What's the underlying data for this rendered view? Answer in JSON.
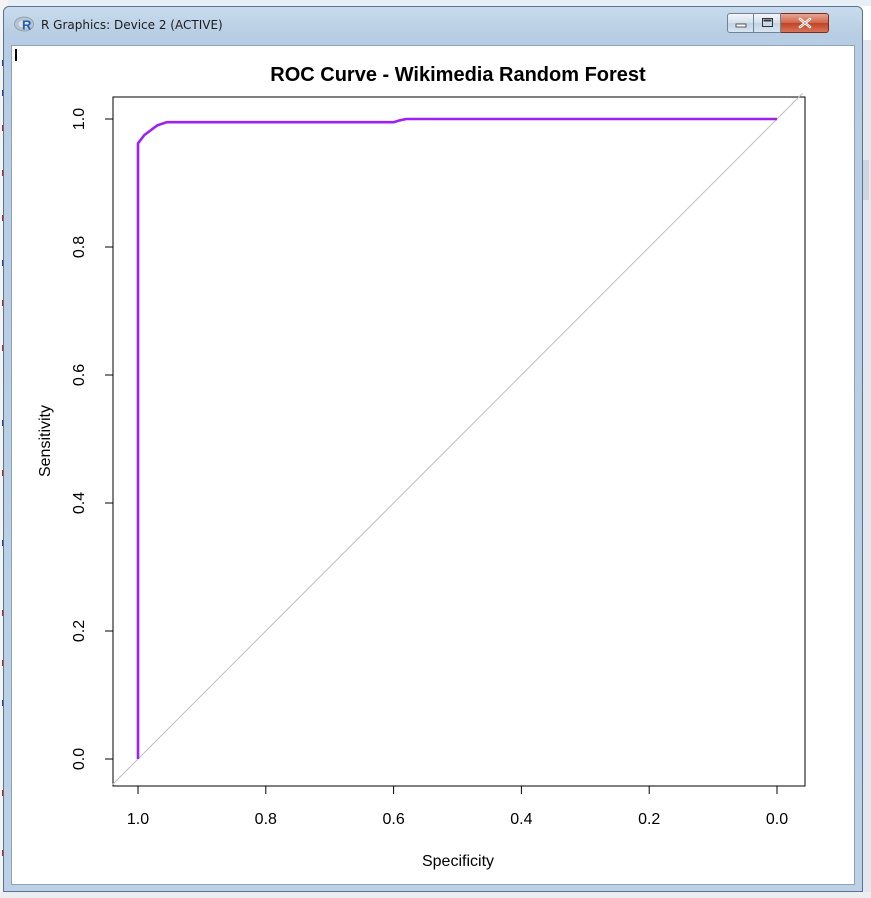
{
  "window": {
    "title": "R Graphics: Device 2 (ACTIVE)",
    "app_icon": "r-logo-icon",
    "controls": [
      "minimize-icon",
      "maximize-icon",
      "close-icon"
    ]
  },
  "colors": {
    "curve": "#a020f0",
    "diagonal": "#bebebe",
    "frame": "#000000",
    "close_button": "#c8472a",
    "titlebar": "#bcd1e6"
  },
  "chart_data": {
    "type": "line",
    "title": "ROC Curve - Wikimedia Random Forest",
    "xlabel": "Specificity",
    "ylabel": "Sensitivity",
    "xlim": [
      1.0,
      0.0
    ],
    "ylim": [
      0.0,
      1.0
    ],
    "x_reversed": true,
    "x_ticks": [
      1.0,
      0.8,
      0.6,
      0.4,
      0.2,
      0.0
    ],
    "x_tick_labels": [
      "1.0",
      "0.8",
      "0.6",
      "0.4",
      "0.2",
      "0.0"
    ],
    "y_ticks": [
      0.0,
      0.2,
      0.4,
      0.6,
      0.8,
      1.0
    ],
    "y_tick_labels": [
      "0.0",
      "0.2",
      "0.4",
      "0.6",
      "0.8",
      "1.0"
    ],
    "grid": false,
    "reference_line": {
      "from": [
        1.0,
        0.0
      ],
      "to": [
        0.0,
        1.0
      ]
    },
    "series": [
      {
        "specificity": [
          1.0,
          1.0,
          0.99,
          0.97,
          0.955,
          0.6,
          0.59,
          0.58,
          0.0
        ],
        "sensitivity": [
          0.0,
          0.962,
          0.975,
          0.99,
          0.995,
          0.995,
          0.998,
          1.0,
          1.0
        ]
      }
    ]
  }
}
